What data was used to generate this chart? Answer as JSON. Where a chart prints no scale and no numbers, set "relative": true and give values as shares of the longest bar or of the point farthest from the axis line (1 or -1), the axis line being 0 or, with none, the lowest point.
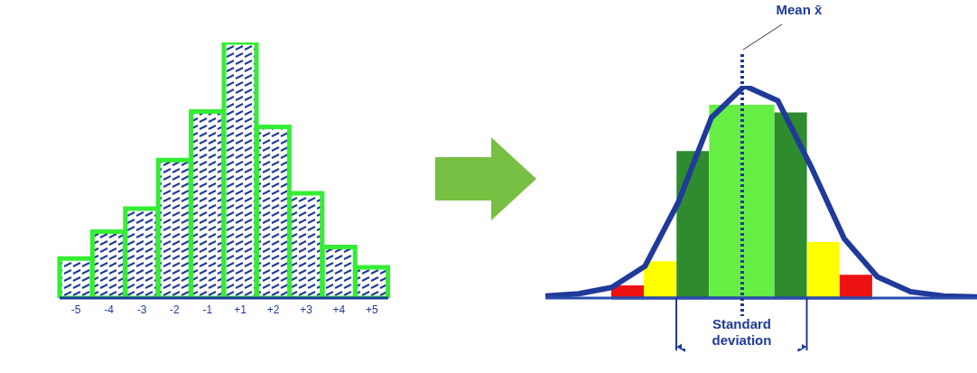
{
  "chart_data": [
    {
      "type": "bar",
      "relative": true,
      "categories": [
        "-5",
        "-4",
        "-3",
        "-2",
        "-1",
        "+1",
        "+2",
        "+3",
        "+4",
        "+5"
      ],
      "values": [
        0.155,
        0.26,
        0.35,
        0.54,
        0.73,
        1,
        0.67,
        0.41,
        0.2,
        0.12
      ],
      "color": "#33ee33"
    },
    {
      "type": "bar",
      "relative": true,
      "categories": [
        null,
        null,
        null,
        null,
        null,
        null,
        null,
        null
      ],
      "values": [
        0.066,
        0.19,
        0.76,
        1,
        1,
        0.96,
        0.29,
        0.12
      ],
      "colors": [
        "#ee1111",
        "#ffff00",
        "#2e8b2e",
        "#66ee44",
        "#66ee44",
        "#2e8b2e",
        "#ffff00",
        "#ee1111"
      ],
      "annotations": [
        "Mean x̄",
        "Standard deviation"
      ]
    },
    {
      "type": "line",
      "relative": true,
      "categories": [
        null,
        null,
        null,
        null,
        null,
        null,
        null,
        null,
        null,
        null,
        null,
        null,
        null,
        null
      ],
      "values": [
        0.01,
        0.02,
        0.05,
        0.15,
        0.45,
        0.85,
        1,
        0.93,
        0.62,
        0.28,
        0.1,
        0.03,
        0.01,
        0.005
      ],
      "color": "#1f3a9a"
    }
  ]
}
